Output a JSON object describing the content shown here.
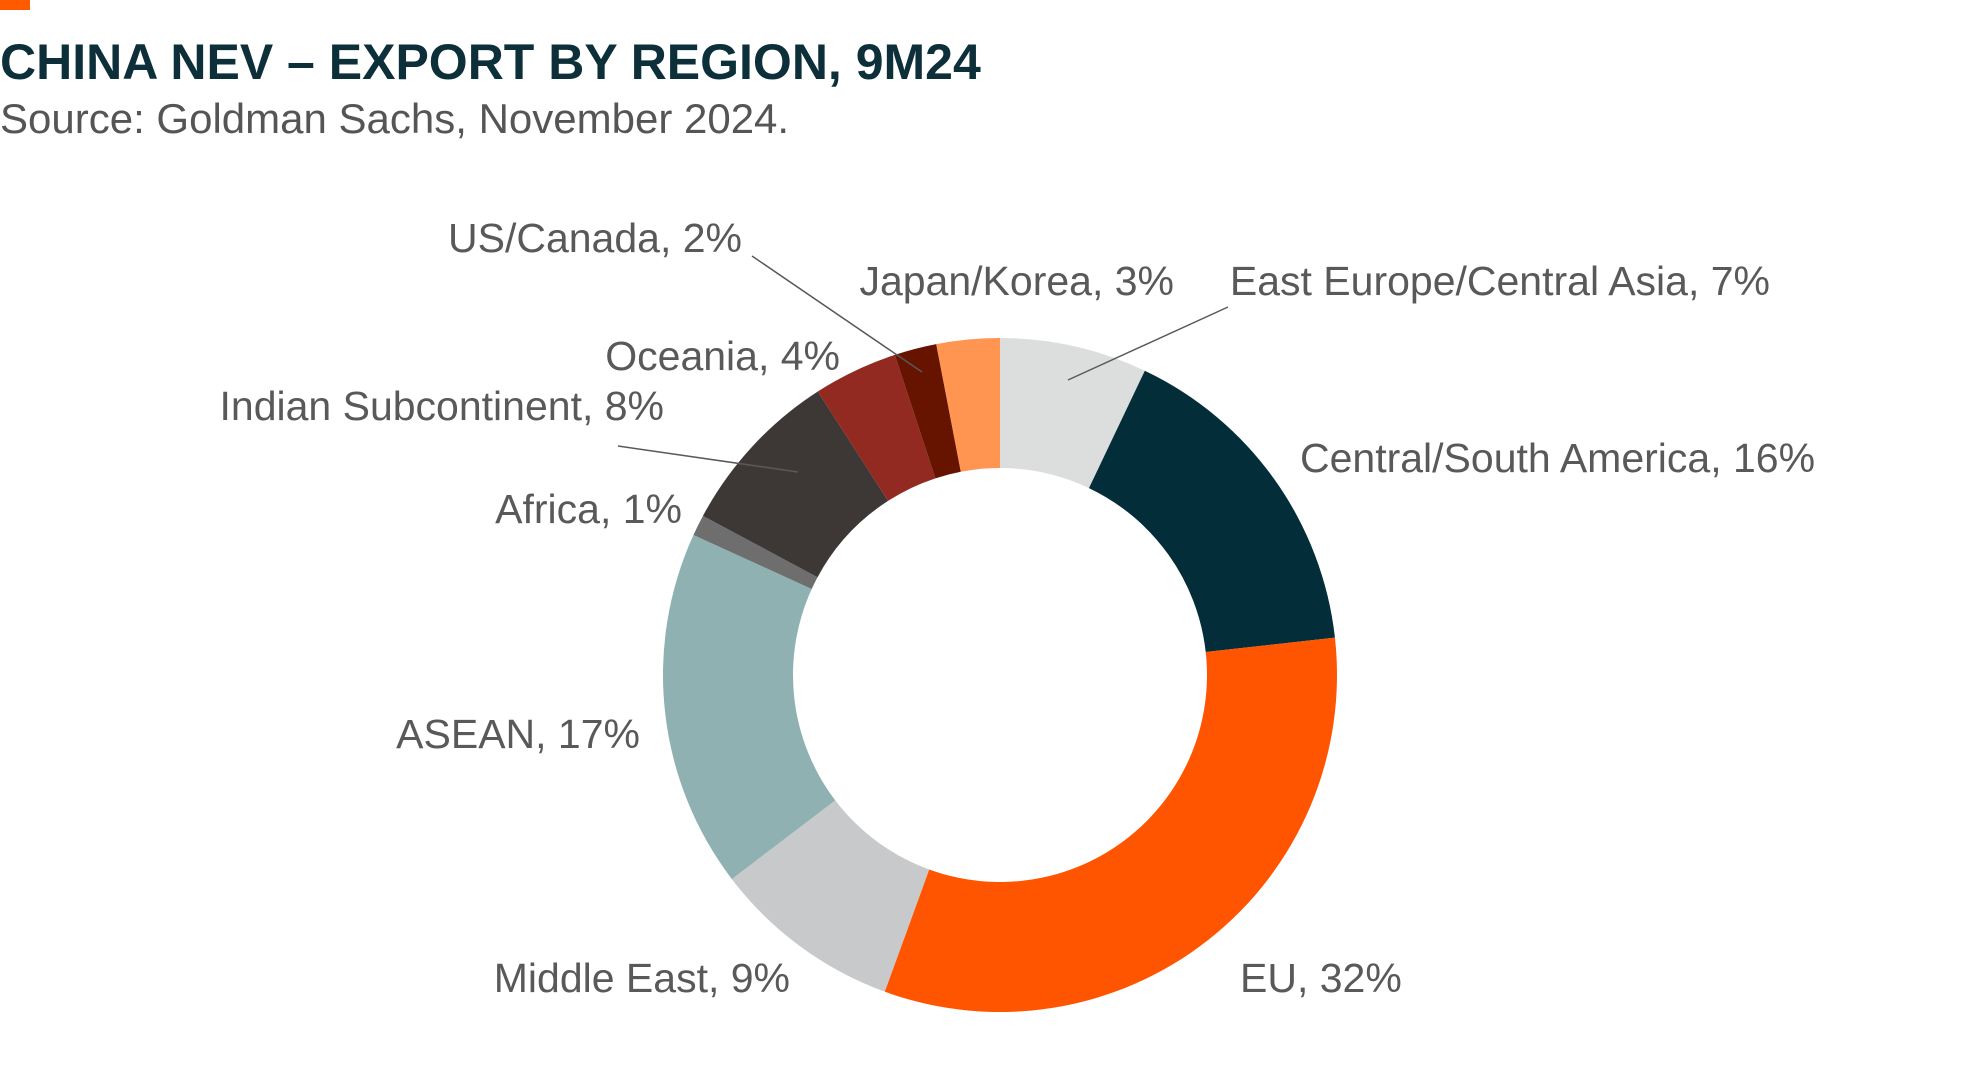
{
  "title": "CHINA NEV – EXPORT BY REGION, 9M24",
  "subtitle": "Source: Goldman Sachs, November 2024.",
  "colors": {
    "accent": "#ff5a00",
    "title": "#0d2f3a"
  },
  "chart_data": {
    "type": "pie",
    "donut": true,
    "title": "CHINA NEV – EXPORT BY REGION, 9M24",
    "subtitle": "Source: Goldman Sachs, November 2024.",
    "slices": [
      {
        "name": "East Europe/Central Asia",
        "value": 7,
        "label": "East Europe/Central Asia, 7%",
        "color": "#dcdddd"
      },
      {
        "name": "Central/South America",
        "value": 16,
        "label": "Central/South America, 16%",
        "color": "#022d39"
      },
      {
        "name": "EU",
        "value": 32,
        "label": "EU, 32%",
        "color": "#ff5500"
      },
      {
        "name": "Middle East",
        "value": 9,
        "label": "Middle East, 9%",
        "color": "#c8c9cb"
      },
      {
        "name": "ASEAN",
        "value": 17,
        "label": "ASEAN, 17%",
        "color": "#8fb1b1"
      },
      {
        "name": "Africa",
        "value": 1,
        "label": "Africa, 1%",
        "color": "#6e6e6e"
      },
      {
        "name": "Indian Subcontinent",
        "value": 8,
        "label": "Indian Subcontinent, 8%",
        "color": "#3d3835"
      },
      {
        "name": "Oceania",
        "value": 4,
        "label": "Oceania, 4%",
        "color": "#922a21"
      },
      {
        "name": "US/Canada",
        "value": 2,
        "label": "US/Canada, 2%",
        "color": "#661400"
      },
      {
        "name": "Japan/Korea",
        "value": 3,
        "label": "Japan/Korea, 3%",
        "color": "#ff9550"
      }
    ]
  }
}
